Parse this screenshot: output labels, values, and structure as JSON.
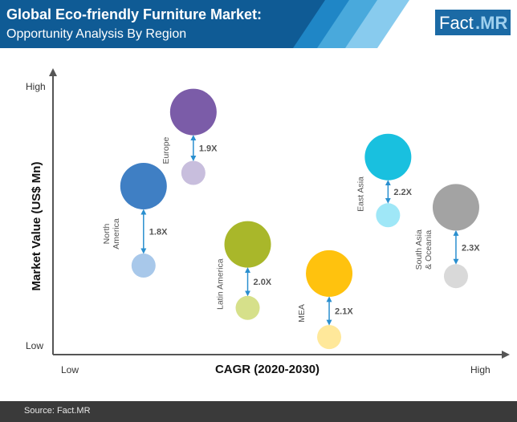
{
  "header": {
    "title": "Global Eco-friendly Furniture Market:",
    "subtitle": "Opportunity Analysis By Region",
    "logo_part1": "Fact",
    "logo_part2": ".MR"
  },
  "footer": {
    "source": "Source: Fact.MR"
  },
  "colors": {
    "banner": "#0f5b95",
    "stripe1": "#1f86c6",
    "stripe2": "#49a9dc",
    "stripe3": "#88cbee",
    "logo_bg": "#1b6aa5",
    "logo_accent": "#9fd0ee",
    "axis": "#555555",
    "arrow": "#2a8fcf"
  },
  "chart_data": {
    "type": "scatter",
    "title": "",
    "xlabel": "CAGR (2020-2030)",
    "ylabel": "Market Value (US$ Mn)",
    "x_tick_labels": {
      "low": "Low",
      "high": "High"
    },
    "y_tick_labels": {
      "low": "Low",
      "high": "High"
    },
    "qualitative_axes": true,
    "regions": [
      {
        "name": "North America",
        "label_lines": [
          "North",
          "America"
        ],
        "growth": "1.8X",
        "position_x": 0.2,
        "position_y_large": 0.6,
        "position_y_small": 0.3,
        "color_large": "#3f7fc4",
        "color_small": "#a8c8ea"
      },
      {
        "name": "Europe",
        "label_lines": [
          "Europe"
        ],
        "growth": "1.9X",
        "position_x": 0.31,
        "position_y_large": 0.88,
        "position_y_small": 0.65,
        "color_large": "#7b5ca8",
        "color_small": "#c8bedd"
      },
      {
        "name": "Latin America",
        "label_lines": [
          "Latin America"
        ],
        "growth": "2.0X",
        "position_x": 0.43,
        "position_y_large": 0.38,
        "position_y_small": 0.14,
        "color_large": "#a9b72a",
        "color_small": "#d6e08a"
      },
      {
        "name": "MEA",
        "label_lines": [
          "MEA"
        ],
        "growth": "2.1X",
        "position_x": 0.61,
        "position_y_large": 0.27,
        "position_y_small": 0.03,
        "color_large": "#ffc20e",
        "color_small": "#ffe89a"
      },
      {
        "name": "East Asia",
        "label_lines": [
          "East Asia"
        ],
        "growth": "2.2X",
        "position_x": 0.74,
        "position_y_large": 0.71,
        "position_y_small": 0.49,
        "color_large": "#19c0df",
        "color_small": "#9fe7f7"
      },
      {
        "name": "South Asia & Oceania",
        "label_lines": [
          "South Asia",
          "& Oceania"
        ],
        "growth": "2.3X",
        "position_x": 0.89,
        "position_y_large": 0.52,
        "position_y_small": 0.26,
        "color_large": "#a3a3a3",
        "color_small": "#d9d9d9"
      }
    ]
  }
}
